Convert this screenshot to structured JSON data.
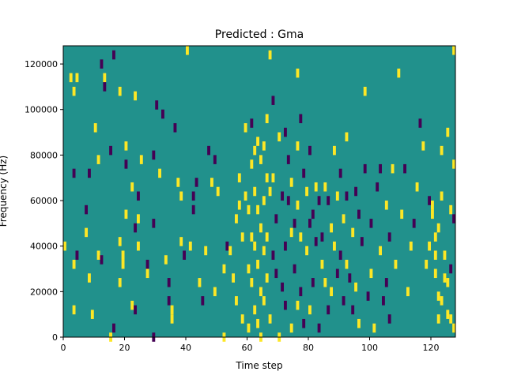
{
  "chart_data": {
    "type": "heatmap",
    "title": "Predicted : Gma",
    "xlabel": "Time step",
    "ylabel": "Frequency (Hz)",
    "xlim": [
      0,
      128
    ],
    "ylim": [
      0,
      128000
    ],
    "x_ticks": [
      0,
      20,
      40,
      60,
      80,
      100,
      120
    ],
    "x_tick_labels": [
      "0",
      "20",
      "40",
      "60",
      "80",
      "100",
      "120"
    ],
    "y_ticks": [
      0,
      20000,
      40000,
      60000,
      80000,
      100000,
      120000
    ],
    "y_tick_labels": [
      "0",
      "20000",
      "40000",
      "60000",
      "80000",
      "100000",
      "120000"
    ],
    "colors": {
      "low": "#440154",
      "mid": "#21918c",
      "high": "#fde725"
    },
    "background_value": 0,
    "value_legend": {
      "low": -1,
      "mid": 0,
      "high": 1
    },
    "cells": [
      [
        2,
        114000,
        1
      ],
      [
        4,
        114000,
        1
      ],
      [
        3,
        108000,
        1
      ],
      [
        3,
        72000,
        -1
      ],
      [
        0,
        40000,
        1
      ],
      [
        3,
        32000,
        1
      ],
      [
        4,
        36000,
        -1
      ],
      [
        3,
        12000,
        1
      ],
      [
        7,
        56000,
        -1
      ],
      [
        7,
        46000,
        1
      ],
      [
        8,
        72000,
        -1
      ],
      [
        8,
        26000,
        1
      ],
      [
        9,
        10000,
        1
      ],
      [
        10,
        92000,
        1
      ],
      [
        11,
        36000,
        1
      ],
      [
        12,
        34000,
        -1
      ],
      [
        11,
        78000,
        1
      ],
      [
        12,
        120000,
        -1
      ],
      [
        13,
        114000,
        1
      ],
      [
        13,
        110000,
        -1
      ],
      [
        15,
        82000,
        -1
      ],
      [
        16,
        124000,
        -1
      ],
      [
        16,
        4000,
        -1
      ],
      [
        15,
        0,
        1
      ],
      [
        18,
        108000,
        1
      ],
      [
        18,
        42000,
        1
      ],
      [
        18,
        24000,
        1
      ],
      [
        19,
        32000,
        1
      ],
      [
        19,
        36000,
        1
      ],
      [
        20,
        84000,
        1
      ],
      [
        20,
        76000,
        -1
      ],
      [
        20,
        54000,
        1
      ],
      [
        22,
        66000,
        1
      ],
      [
        22,
        14000,
        1
      ],
      [
        23,
        106000,
        1
      ],
      [
        23,
        48000,
        -1
      ],
      [
        23,
        12000,
        -1
      ],
      [
        24,
        62000,
        -1
      ],
      [
        24,
        52000,
        1
      ],
      [
        24,
        40000,
        1
      ],
      [
        25,
        78000,
        1
      ],
      [
        27,
        32000,
        -1
      ],
      [
        27,
        28000,
        1
      ],
      [
        29,
        80000,
        -1
      ],
      [
        29,
        50000,
        -1
      ],
      [
        29,
        0,
        -1
      ],
      [
        30,
        102000,
        -1
      ],
      [
        31,
        72000,
        1
      ],
      [
        32,
        98000,
        -1
      ],
      [
        33,
        34000,
        1
      ],
      [
        34,
        24000,
        -1
      ],
      [
        34,
        16000,
        -1
      ],
      [
        35,
        8000,
        1
      ],
      [
        35,
        12000,
        1
      ],
      [
        36,
        92000,
        -1
      ],
      [
        37,
        68000,
        1
      ],
      [
        38,
        62000,
        1
      ],
      [
        38,
        42000,
        1
      ],
      [
        39,
        36000,
        -1
      ],
      [
        40,
        126000,
        1
      ],
      [
        41,
        40000,
        1
      ],
      [
        42,
        62000,
        -1
      ],
      [
        42,
        56000,
        -1
      ],
      [
        43,
        68000,
        -1
      ],
      [
        44,
        24000,
        1
      ],
      [
        45,
        16000,
        -1
      ],
      [
        46,
        38000,
        1
      ],
      [
        47,
        82000,
        -1
      ],
      [
        48,
        68000,
        1
      ],
      [
        49,
        78000,
        -1
      ],
      [
        50,
        64000,
        1
      ],
      [
        49,
        20000,
        1
      ],
      [
        52,
        0,
        1
      ],
      [
        52,
        30000,
        1
      ],
      [
        53,
        40000,
        -1
      ],
      [
        54,
        38000,
        1
      ],
      [
        55,
        26000,
        1
      ],
      [
        56,
        52000,
        1
      ],
      [
        56,
        16000,
        1
      ],
      [
        57,
        58000,
        1
      ],
      [
        57,
        70000,
        1
      ],
      [
        58,
        44000,
        1
      ],
      [
        58,
        8000,
        1
      ],
      [
        59,
        92000,
        1
      ],
      [
        59,
        62000,
        1
      ],
      [
        60,
        56000,
        1
      ],
      [
        60,
        30000,
        1
      ],
      [
        60,
        4000,
        1
      ],
      [
        61,
        94000,
        -1
      ],
      [
        61,
        76000,
        1
      ],
      [
        61,
        44000,
        1
      ],
      [
        61,
        24000,
        1
      ],
      [
        62,
        82000,
        1
      ],
      [
        62,
        64000,
        1
      ],
      [
        62,
        40000,
        1
      ],
      [
        62,
        12000,
        1
      ],
      [
        63,
        86000,
        1
      ],
      [
        63,
        56000,
        1
      ],
      [
        63,
        32000,
        1
      ],
      [
        63,
        6000,
        1
      ],
      [
        64,
        78000,
        1
      ],
      [
        64,
        48000,
        1
      ],
      [
        64,
        20000,
        1
      ],
      [
        64,
        0,
        1
      ],
      [
        65,
        84000,
        1
      ],
      [
        65,
        60000,
        1
      ],
      [
        65,
        38000,
        1
      ],
      [
        65,
        16000,
        1
      ],
      [
        66,
        96000,
        1
      ],
      [
        66,
        70000,
        1
      ],
      [
        66,
        44000,
        1
      ],
      [
        66,
        26000,
        1
      ],
      [
        67,
        124000,
        1
      ],
      [
        67,
        8000,
        1
      ],
      [
        67,
        64000,
        1
      ],
      [
        68,
        70000,
        1
      ],
      [
        68,
        104000,
        -1
      ],
      [
        68,
        36000,
        -1
      ],
      [
        69,
        52000,
        -1
      ],
      [
        69,
        28000,
        -1
      ],
      [
        70,
        88000,
        1
      ],
      [
        70,
        0,
        1
      ],
      [
        71,
        62000,
        -1
      ],
      [
        71,
        22000,
        -1
      ],
      [
        72,
        90000,
        -1
      ],
      [
        72,
        40000,
        -1
      ],
      [
        72,
        14000,
        -1
      ],
      [
        73,
        60000,
        -1
      ],
      [
        73,
        78000,
        -1
      ],
      [
        74,
        68000,
        1
      ],
      [
        74,
        46000,
        1
      ],
      [
        74,
        4000,
        1
      ],
      [
        75,
        50000,
        -1
      ],
      [
        75,
        30000,
        -1
      ],
      [
        76,
        116000,
        1
      ],
      [
        76,
        84000,
        1
      ],
      [
        76,
        58000,
        1
      ],
      [
        76,
        14000,
        1
      ],
      [
        77,
        96000,
        -1
      ],
      [
        77,
        44000,
        1
      ],
      [
        77,
        20000,
        -1
      ],
      [
        78,
        72000,
        -1
      ],
      [
        78,
        6000,
        -1
      ],
      [
        79,
        64000,
        1
      ],
      [
        79,
        38000,
        1
      ],
      [
        80,
        82000,
        -1
      ],
      [
        80,
        50000,
        -1
      ],
      [
        80,
        12000,
        1
      ],
      [
        81,
        54000,
        -1
      ],
      [
        81,
        24000,
        -1
      ],
      [
        82,
        66000,
        1
      ],
      [
        82,
        42000,
        -1
      ],
      [
        83,
        4000,
        -1
      ],
      [
        83,
        60000,
        -1
      ],
      [
        84,
        44000,
        -1
      ],
      [
        84,
        32000,
        1
      ],
      [
        85,
        24000,
        1
      ],
      [
        85,
        66000,
        1
      ],
      [
        86,
        60000,
        -1
      ],
      [
        86,
        12000,
        -1
      ],
      [
        87,
        48000,
        1
      ],
      [
        87,
        20000,
        1
      ],
      [
        88,
        82000,
        1
      ],
      [
        88,
        40000,
        1
      ],
      [
        89,
        62000,
        1
      ],
      [
        89,
        28000,
        -1
      ],
      [
        90,
        72000,
        -1
      ],
      [
        90,
        36000,
        -1
      ],
      [
        91,
        52000,
        1
      ],
      [
        91,
        16000,
        -1
      ],
      [
        92,
        88000,
        1
      ],
      [
        92,
        62000,
        -1
      ],
      [
        92,
        32000,
        1
      ],
      [
        93,
        26000,
        -1
      ],
      [
        94,
        12000,
        -1
      ],
      [
        94,
        46000,
        1
      ],
      [
        95,
        64000,
        -1
      ],
      [
        95,
        22000,
        1
      ],
      [
        96,
        54000,
        -1
      ],
      [
        96,
        6000,
        1
      ],
      [
        97,
        42000,
        -1
      ],
      [
        98,
        74000,
        -1
      ],
      [
        98,
        108000,
        1
      ],
      [
        99,
        18000,
        -1
      ],
      [
        100,
        28000,
        1
      ],
      [
        100,
        50000,
        -1
      ],
      [
        101,
        4000,
        1
      ],
      [
        102,
        66000,
        -1
      ],
      [
        103,
        74000,
        -1
      ],
      [
        103,
        38000,
        1
      ],
      [
        104,
        16000,
        -1
      ],
      [
        105,
        58000,
        1
      ],
      [
        105,
        24000,
        -1
      ],
      [
        106,
        44000,
        -1
      ],
      [
        106,
        8000,
        -1
      ],
      [
        107,
        74000,
        1
      ],
      [
        108,
        32000,
        1
      ],
      [
        109,
        116000,
        1
      ],
      [
        110,
        54000,
        1
      ],
      [
        111,
        74000,
        -1
      ],
      [
        112,
        20000,
        1
      ],
      [
        113,
        40000,
        1
      ],
      [
        114,
        50000,
        -1
      ],
      [
        115,
        66000,
        1
      ],
      [
        116,
        94000,
        -1
      ],
      [
        117,
        84000,
        1
      ],
      [
        118,
        32000,
        1
      ],
      [
        119,
        60000,
        -1
      ],
      [
        119,
        40000,
        1
      ],
      [
        120,
        54000,
        1
      ],
      [
        121,
        28000,
        1
      ],
      [
        122,
        48000,
        1
      ],
      [
        122,
        18000,
        1
      ],
      [
        123,
        82000,
        1
      ],
      [
        123,
        62000,
        1
      ],
      [
        124,
        36000,
        1
      ],
      [
        125,
        90000,
        1
      ],
      [
        125,
        24000,
        1
      ],
      [
        126,
        56000,
        1
      ],
      [
        126,
        8000,
        1
      ],
      [
        127,
        126000,
        1
      ],
      [
        127,
        76000,
        1
      ],
      [
        127,
        52000,
        -1
      ],
      [
        127,
        4000,
        1
      ],
      [
        120,
        58000,
        1
      ],
      [
        121,
        44000,
        1
      ],
      [
        121,
        36000,
        1
      ],
      [
        122,
        8000,
        1
      ],
      [
        123,
        16000,
        1
      ],
      [
        124,
        26000,
        1
      ],
      [
        125,
        10000,
        1
      ],
      [
        126,
        30000,
        -1
      ]
    ]
  }
}
